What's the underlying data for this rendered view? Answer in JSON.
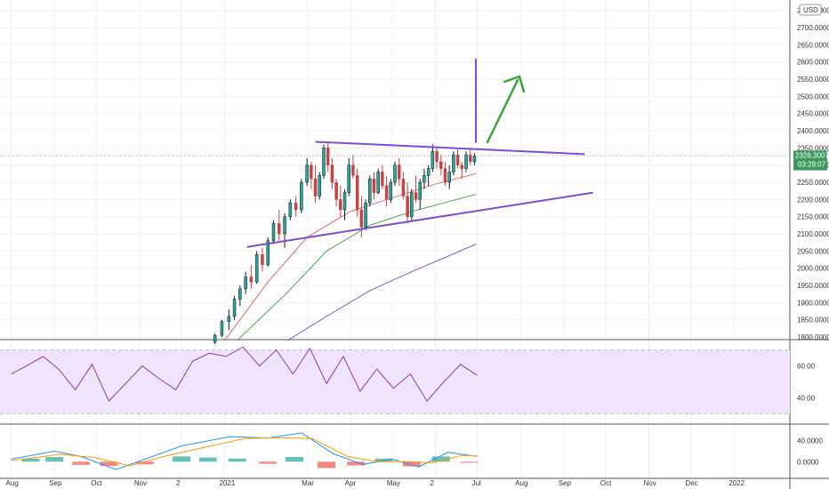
{
  "chart_data": [
    {
      "type": "candlestick",
      "currency": "USD",
      "y_ticks": [
        "1800.0000",
        "1850.0000",
        "1900.0000",
        "1950.0000",
        "2000.0000",
        "2050.0000",
        "2100.0000",
        "2150.0000",
        "2200.0000",
        "2250.0000",
        "2300.0000",
        "2350.0000",
        "2400.0000",
        "2450.0000",
        "2500.0000",
        "2550.0000",
        "2600.0000",
        "2650.0000",
        "2700.0000",
        "2750.0000"
      ],
      "ylim": [
        1795,
        2770
      ],
      "last_price": "2326.3007",
      "countdown": "03:29:07",
      "trendlines": [
        {
          "name": "upper-resistance",
          "from": {
            "date": "2021-03-07",
            "price": 2368
          },
          "to": {
            "date": "2021-09-16",
            "price": 2332
          }
        },
        {
          "name": "lower-support",
          "from": {
            "date": "2021-01-17",
            "price": 2062
          },
          "to": {
            "date": "2021-09-22",
            "price": 2220
          }
        }
      ],
      "breakout_vertical": {
        "date": "2021-06-30",
        "from": 2365,
        "to": 2610
      },
      "moving_averages": [
        {
          "color": "#e05a5a",
          "points": [
            [
              "2021-01-01",
              1790
            ],
            [
              "2021-02-01",
              1960
            ],
            [
              "2021-03-01",
              2090
            ],
            [
              "2021-04-01",
              2165
            ],
            [
              "2021-05-01",
              2205
            ],
            [
              "2021-06-01",
              2245
            ],
            [
              "2021-06-30",
              2275
            ]
          ]
        },
        {
          "color": "#3f9a3f",
          "points": [
            [
              "2021-01-10",
              1790
            ],
            [
              "2021-02-15",
              1930
            ],
            [
              "2021-03-15",
              2050
            ],
            [
              "2021-04-15",
              2125
            ],
            [
              "2021-05-15",
              2165
            ],
            [
              "2021-06-30",
              2215
            ]
          ]
        },
        {
          "color": "#5a4fd6",
          "points": [
            [
              "2021-02-15",
              1790
            ],
            [
              "2021-03-15",
              1860
            ],
            [
              "2021-04-15",
              1935
            ],
            [
              "2021-05-15",
              1990
            ],
            [
              "2021-06-30",
              2070
            ]
          ]
        }
      ],
      "candles": [
        [
          "2020-12-25",
          1785,
          1810,
          1780,
          1805
        ],
        [
          "2020-12-30",
          1805,
          1850,
          1800,
          1845
        ],
        [
          "2021-01-04",
          1845,
          1880,
          1820,
          1860
        ],
        [
          "2021-01-08",
          1860,
          1920,
          1850,
          1910
        ],
        [
          "2021-01-12",
          1910,
          1950,
          1890,
          1940
        ],
        [
          "2021-01-16",
          1940,
          1990,
          1925,
          1975
        ],
        [
          "2021-01-20",
          1975,
          2010,
          1940,
          1960
        ],
        [
          "2021-01-24",
          1960,
          2050,
          1955,
          2040
        ],
        [
          "2021-01-28",
          2040,
          2060,
          1990,
          2010
        ],
        [
          "2021-02-01",
          2010,
          2090,
          2005,
          2080
        ],
        [
          "2021-02-05",
          2080,
          2140,
          2070,
          2130
        ],
        [
          "2021-02-09",
          2130,
          2170,
          2080,
          2100
        ],
        [
          "2021-02-13",
          2100,
          2160,
          2060,
          2150
        ],
        [
          "2021-02-17",
          2150,
          2200,
          2140,
          2190
        ],
        [
          "2021-02-21",
          2190,
          2210,
          2150,
          2170
        ],
        [
          "2021-02-25",
          2170,
          2260,
          2160,
          2250
        ],
        [
          "2021-03-01",
          2250,
          2320,
          2240,
          2300
        ],
        [
          "2021-03-04",
          2300,
          2310,
          2230,
          2260
        ],
        [
          "2021-03-07",
          2260,
          2300,
          2190,
          2210
        ],
        [
          "2021-03-10",
          2210,
          2280,
          2200,
          2270
        ],
        [
          "2021-03-13",
          2270,
          2360,
          2260,
          2350
        ],
        [
          "2021-03-16",
          2350,
          2365,
          2280,
          2300
        ],
        [
          "2021-03-19",
          2300,
          2320,
          2230,
          2250
        ],
        [
          "2021-03-22",
          2250,
          2260,
          2180,
          2200
        ],
        [
          "2021-03-25",
          2200,
          2240,
          2150,
          2170
        ],
        [
          "2021-03-28",
          2170,
          2230,
          2140,
          2220
        ],
        [
          "2021-03-31",
          2220,
          2320,
          2210,
          2300
        ],
        [
          "2021-04-03",
          2300,
          2330,
          2260,
          2270
        ],
        [
          "2021-04-06",
          2270,
          2290,
          2150,
          2170
        ],
        [
          "2021-04-09",
          2170,
          2210,
          2090,
          2120
        ],
        [
          "2021-04-12",
          2120,
          2200,
          2110,
          2190
        ],
        [
          "2021-04-15",
          2190,
          2270,
          2180,
          2260
        ],
        [
          "2021-04-18",
          2260,
          2280,
          2200,
          2220
        ],
        [
          "2021-04-21",
          2220,
          2290,
          2215,
          2280
        ],
        [
          "2021-04-24",
          2280,
          2300,
          2230,
          2240
        ],
        [
          "2021-04-27",
          2240,
          2270,
          2180,
          2200
        ],
        [
          "2021-04-30",
          2200,
          2260,
          2190,
          2250
        ],
        [
          "2021-05-03",
          2250,
          2310,
          2240,
          2300
        ],
        [
          "2021-05-06",
          2300,
          2320,
          2240,
          2260
        ],
        [
          "2021-05-09",
          2260,
          2280,
          2200,
          2210
        ],
        [
          "2021-05-12",
          2210,
          2250,
          2130,
          2150
        ],
        [
          "2021-05-15",
          2150,
          2230,
          2140,
          2220
        ],
        [
          "2021-05-18",
          2220,
          2270,
          2190,
          2200
        ],
        [
          "2021-05-21",
          2200,
          2260,
          2170,
          2250
        ],
        [
          "2021-05-24",
          2250,
          2290,
          2230,
          2270
        ],
        [
          "2021-05-27",
          2270,
          2300,
          2240,
          2290
        ],
        [
          "2021-05-30",
          2290,
          2360,
          2280,
          2340
        ],
        [
          "2021-06-02",
          2340,
          2355,
          2290,
          2310
        ],
        [
          "2021-06-05",
          2310,
          2330,
          2270,
          2290
        ],
        [
          "2021-06-08",
          2290,
          2310,
          2240,
          2250
        ],
        [
          "2021-06-11",
          2250,
          2300,
          2230,
          2280
        ],
        [
          "2021-06-14",
          2280,
          2340,
          2270,
          2330
        ],
        [
          "2021-06-17",
          2330,
          2350,
          2290,
          2300
        ],
        [
          "2021-06-20",
          2300,
          2310,
          2260,
          2290
        ],
        [
          "2021-06-23",
          2290,
          2340,
          2280,
          2330
        ],
        [
          "2021-06-26",
          2330,
          2345,
          2300,
          2310
        ],
        [
          "2021-06-29",
          2310,
          2335,
          2300,
          2326
        ]
      ],
      "rsi": {
        "y_ticks": [
          "60.00",
          "40.00"
        ],
        "ylim": [
          24,
          76
        ],
        "band": [
          30,
          70
        ],
        "points": [
          [
            "2020-08-01",
            55
          ],
          [
            "2020-08-12",
            60
          ],
          [
            "2020-08-24",
            66
          ],
          [
            "2020-09-04",
            58
          ],
          [
            "2020-09-16",
            45
          ],
          [
            "2020-09-28",
            61
          ],
          [
            "2020-10-10",
            38
          ],
          [
            "2020-10-22",
            49
          ],
          [
            "2020-11-03",
            60
          ],
          [
            "2020-11-15",
            52
          ],
          [
            "2020-11-27",
            45
          ],
          [
            "2020-12-09",
            63
          ],
          [
            "2020-12-21",
            68
          ],
          [
            "2021-01-02",
            66
          ],
          [
            "2021-01-14",
            72
          ],
          [
            "2021-01-26",
            60
          ],
          [
            "2021-02-07",
            70
          ],
          [
            "2021-02-19",
            55
          ],
          [
            "2021-03-03",
            71
          ],
          [
            "2021-03-15",
            49
          ],
          [
            "2021-03-27",
            66
          ],
          [
            "2021-04-08",
            44
          ],
          [
            "2021-04-20",
            58
          ],
          [
            "2021-05-02",
            46
          ],
          [
            "2021-05-14",
            55
          ],
          [
            "2021-05-26",
            38
          ],
          [
            "2021-06-07",
            50
          ],
          [
            "2021-06-19",
            61
          ],
          [
            "2021-07-01",
            54
          ]
        ]
      },
      "macd": {
        "y_ticks": [
          "40.0000",
          "0.0000"
        ],
        "ylim": [
          -30,
          70
        ],
        "macd_line": [
          [
            "2020-08-01",
            5
          ],
          [
            "2020-09-01",
            20
          ],
          [
            "2020-09-20",
            10
          ],
          [
            "2020-10-15",
            -15
          ],
          [
            "2020-11-05",
            5
          ],
          [
            "2020-12-01",
            30
          ],
          [
            "2021-01-05",
            48
          ],
          [
            "2021-02-01",
            45
          ],
          [
            "2021-02-25",
            55
          ],
          [
            "2021-03-20",
            15
          ],
          [
            "2021-04-10",
            -5
          ],
          [
            "2021-05-01",
            5
          ],
          [
            "2021-05-20",
            -10
          ],
          [
            "2021-06-10",
            18
          ],
          [
            "2021-07-01",
            10
          ]
        ],
        "signal_line": [
          [
            "2020-08-01",
            2
          ],
          [
            "2020-09-05",
            14
          ],
          [
            "2020-09-30",
            8
          ],
          [
            "2020-10-25",
            -8
          ],
          [
            "2020-11-15",
            8
          ],
          [
            "2020-12-15",
            26
          ],
          [
            "2021-01-15",
            44
          ],
          [
            "2021-02-10",
            46
          ],
          [
            "2021-03-05",
            44
          ],
          [
            "2021-03-30",
            10
          ],
          [
            "2021-04-20",
            0
          ],
          [
            "2021-05-10",
            0
          ],
          [
            "2021-05-30",
            -2
          ],
          [
            "2021-06-20",
            12
          ],
          [
            "2021-07-01",
            11
          ]
        ],
        "histogram": [
          [
            "2020-08-15",
            6
          ],
          [
            "2020-09-01",
            9
          ],
          [
            "2020-09-20",
            -6
          ],
          [
            "2020-10-10",
            -8
          ],
          [
            "2020-11-05",
            -5
          ],
          [
            "2020-12-01",
            10
          ],
          [
            "2020-12-20",
            8
          ],
          [
            "2021-01-10",
            6
          ],
          [
            "2021-02-01",
            -4
          ],
          [
            "2021-02-20",
            9
          ],
          [
            "2021-03-15",
            -12
          ],
          [
            "2021-04-05",
            -7
          ],
          [
            "2021-04-25",
            6
          ],
          [
            "2021-05-15",
            -9
          ],
          [
            "2021-06-05",
            10
          ],
          [
            "2021-06-25",
            -2
          ]
        ]
      }
    }
  ],
  "x_axis": {
    "labels": [
      {
        "text": "Aug",
        "date": "2020-08-01"
      },
      {
        "text": "Sep",
        "date": "2020-09-01"
      },
      {
        "text": "Oct",
        "date": "2020-10-01"
      },
      {
        "text": "Nov",
        "date": "2020-11-01"
      },
      {
        "text": "2",
        "date": "2020-12-01"
      },
      {
        "text": "2021",
        "date": "2021-01-01"
      },
      {
        "text": "Mar",
        "date": "2021-03-01"
      },
      {
        "text": "Apr",
        "date": "2021-04-01"
      },
      {
        "text": "May",
        "date": "2021-05-01"
      },
      {
        "text": "2",
        "date": "2021-06-01"
      },
      {
        "text": "Jul",
        "date": "2021-07-01"
      },
      {
        "text": "Aug",
        "date": "2021-08-01"
      },
      {
        "text": "Sep",
        "date": "2021-09-01"
      },
      {
        "text": "Oct",
        "date": "2021-10-01"
      },
      {
        "text": "Nov",
        "date": "2021-11-01"
      },
      {
        "text": "Dec",
        "date": "2021-12-01"
      },
      {
        "text": "2022",
        "date": "2022-01-01"
      }
    ]
  },
  "colors": {
    "up": "#26a69a",
    "down": "#ef5350",
    "candle_up": "#1a1a1a",
    "candle_down": "#c44545",
    "trend": "#7b4fd1",
    "arrow": "#3aa33a",
    "rsi": "#8e3aa6",
    "rsi_band": "#efe4fb",
    "macd": "#2196f3",
    "signal": "#ff9800",
    "price_badge": "#3c9a5f"
  }
}
